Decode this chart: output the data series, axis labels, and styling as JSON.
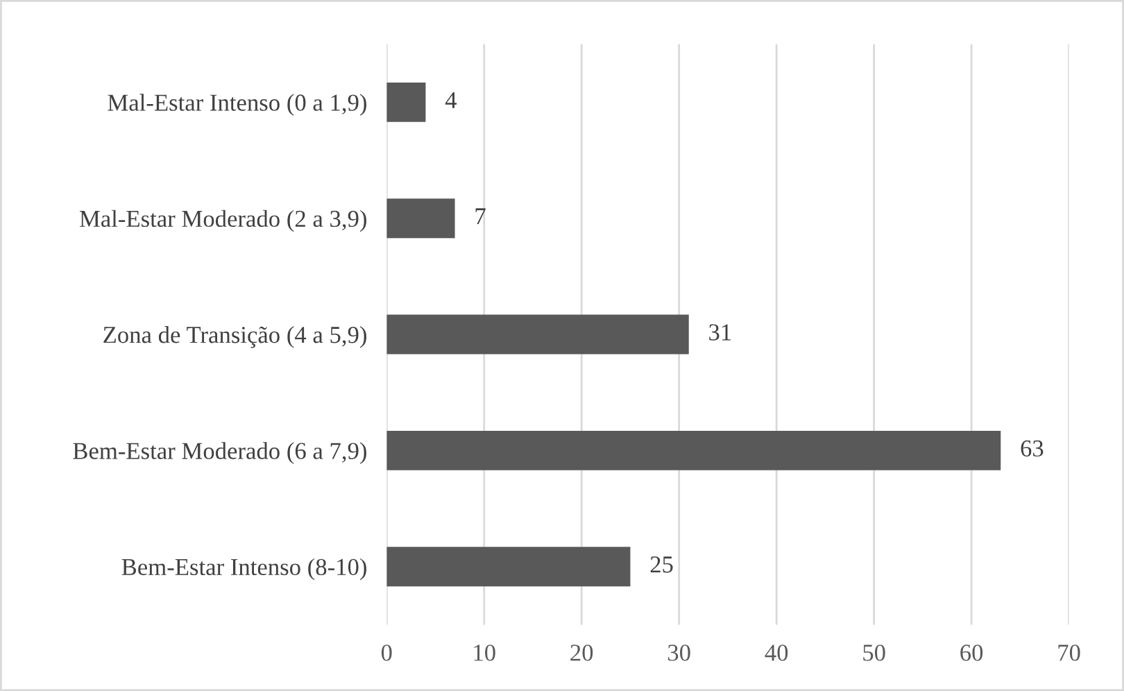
{
  "chart_data": {
    "type": "bar",
    "orientation": "horizontal",
    "categories": [
      "Mal-Estar Intenso (0 a 1,9)",
      "Mal-Estar Moderado (2 a 3,9)",
      "Zona de Transição (4 a 5,9)",
      "Bem-Estar Moderado (6 a 7,9)",
      "Bem-Estar Intenso (8-10)"
    ],
    "values": [
      4,
      7,
      31,
      63,
      25
    ],
    "color": "#595959",
    "xlim": [
      0,
      70
    ],
    "xticks": [
      0,
      10,
      20,
      30,
      40,
      50,
      60,
      70
    ],
    "grid": "x",
    "data_labels": true
  }
}
